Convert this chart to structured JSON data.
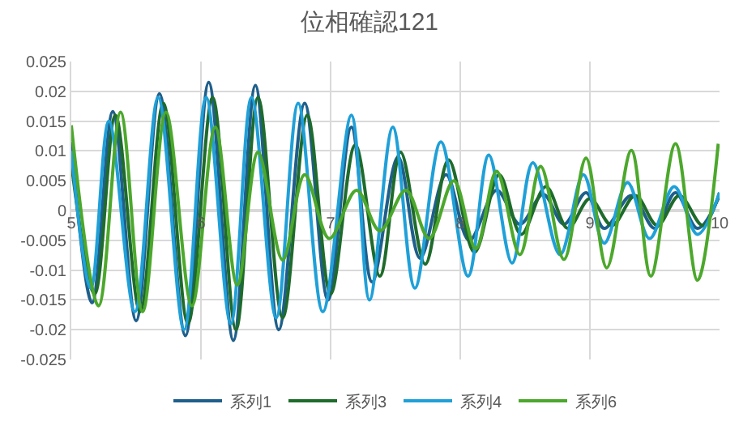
{
  "chart_data": {
    "type": "line",
    "title": "位相確認121",
    "xlim": [
      5,
      10
    ],
    "xticks": [
      5,
      6,
      7,
      8,
      9,
      10
    ],
    "ylim": [
      -0.025,
      0.025
    ],
    "yticks": [
      -0.025,
      -0.02,
      -0.015,
      -0.01,
      -0.005,
      0,
      0.005,
      0.01,
      0.015,
      0.02,
      0.025
    ],
    "grid": true,
    "legend": "bottom",
    "marker": "none",
    "line_style": "solid",
    "series": [
      {
        "name": "系列1",
        "color": "#1f5f8b",
        "x": [
          5.0,
          5.16,
          5.32,
          5.5,
          5.68,
          5.88,
          6.06,
          6.25,
          6.42,
          6.6,
          6.8,
          6.98,
          7.16,
          7.32,
          7.52,
          7.69,
          7.89,
          8.07,
          8.28,
          8.46,
          8.64,
          8.8,
          8.97,
          9.11,
          9.32,
          9.5,
          9.66,
          9.83,
          10.0
        ],
        "values": [
          0.0115,
          -0.0155,
          0.0166,
          -0.0185,
          0.0196,
          -0.021,
          0.0215,
          -0.0218,
          0.021,
          -0.02,
          0.018,
          -0.015,
          0.014,
          -0.012,
          0.009,
          -0.008,
          0.006,
          -0.005,
          0.0034,
          -0.0023,
          0.0027,
          -0.0023,
          0.003,
          -0.003,
          0.0025,
          -0.003,
          0.003,
          -0.003,
          0.0025
        ]
      },
      {
        "name": "系列3",
        "color": "#1e6b2c",
        "x": [
          5.0,
          5.18,
          5.34,
          5.53,
          5.71,
          5.9,
          6.09,
          6.27,
          6.44,
          6.63,
          6.82,
          7.0,
          7.19,
          7.38,
          7.54,
          7.73,
          7.91,
          8.11,
          8.3,
          8.47,
          8.66,
          8.83,
          9.0,
          9.17,
          9.35,
          9.52,
          9.69,
          9.87,
          10.0
        ],
        "values": [
          0.008,
          -0.014,
          0.016,
          -0.017,
          0.018,
          -0.019,
          0.019,
          -0.02,
          0.019,
          -0.018,
          0.016,
          -0.014,
          0.011,
          -0.011,
          0.0098,
          -0.009,
          0.0085,
          -0.007,
          0.006,
          -0.004,
          0.004,
          -0.003,
          0.002,
          -0.0025,
          0.0025,
          -0.0025,
          0.0025,
          -0.0025,
          0.003
        ]
      },
      {
        "name": "系列4",
        "color": "#1fa0d8",
        "x": [
          5.0,
          5.15,
          5.29,
          5.49,
          5.67,
          5.87,
          6.04,
          6.23,
          6.39,
          6.58,
          6.75,
          6.94,
          7.16,
          7.3,
          7.48,
          7.65,
          7.85,
          8.06,
          8.22,
          8.4,
          8.56,
          8.77,
          8.95,
          9.11,
          9.29,
          9.46,
          9.65,
          9.83,
          10.0
        ],
        "values": [
          0.01,
          -0.013,
          0.015,
          -0.017,
          0.019,
          -0.02,
          0.019,
          -0.019,
          0.019,
          -0.018,
          0.018,
          -0.017,
          0.016,
          -0.015,
          0.014,
          -0.013,
          0.0115,
          -0.011,
          0.0093,
          -0.0088,
          0.008,
          -0.0074,
          0.006,
          -0.0055,
          0.0047,
          -0.0047,
          0.004,
          -0.004,
          0.003
        ]
      },
      {
        "name": "系列6",
        "color": "#4ca82c",
        "x": [
          5.0,
          5.21,
          5.38,
          5.55,
          5.73,
          5.93,
          6.11,
          6.28,
          6.44,
          6.63,
          6.8,
          6.99,
          7.2,
          7.38,
          7.58,
          7.76,
          7.95,
          8.12,
          8.28,
          8.46,
          8.62,
          8.8,
          8.97,
          9.13,
          9.32,
          9.47,
          9.66,
          9.83,
          9.99
        ],
        "values": [
          0.0143,
          -0.016,
          0.0165,
          -0.017,
          0.0165,
          -0.016,
          0.014,
          -0.0125,
          0.0098,
          -0.0083,
          0.006,
          -0.0047,
          0.0034,
          -0.0034,
          0.0034,
          -0.0047,
          0.005,
          -0.0064,
          0.0066,
          -0.0074,
          0.0074,
          -0.0082,
          0.0088,
          -0.0096,
          0.0101,
          -0.011,
          0.0112,
          -0.0117,
          0.0112
        ]
      }
    ]
  }
}
